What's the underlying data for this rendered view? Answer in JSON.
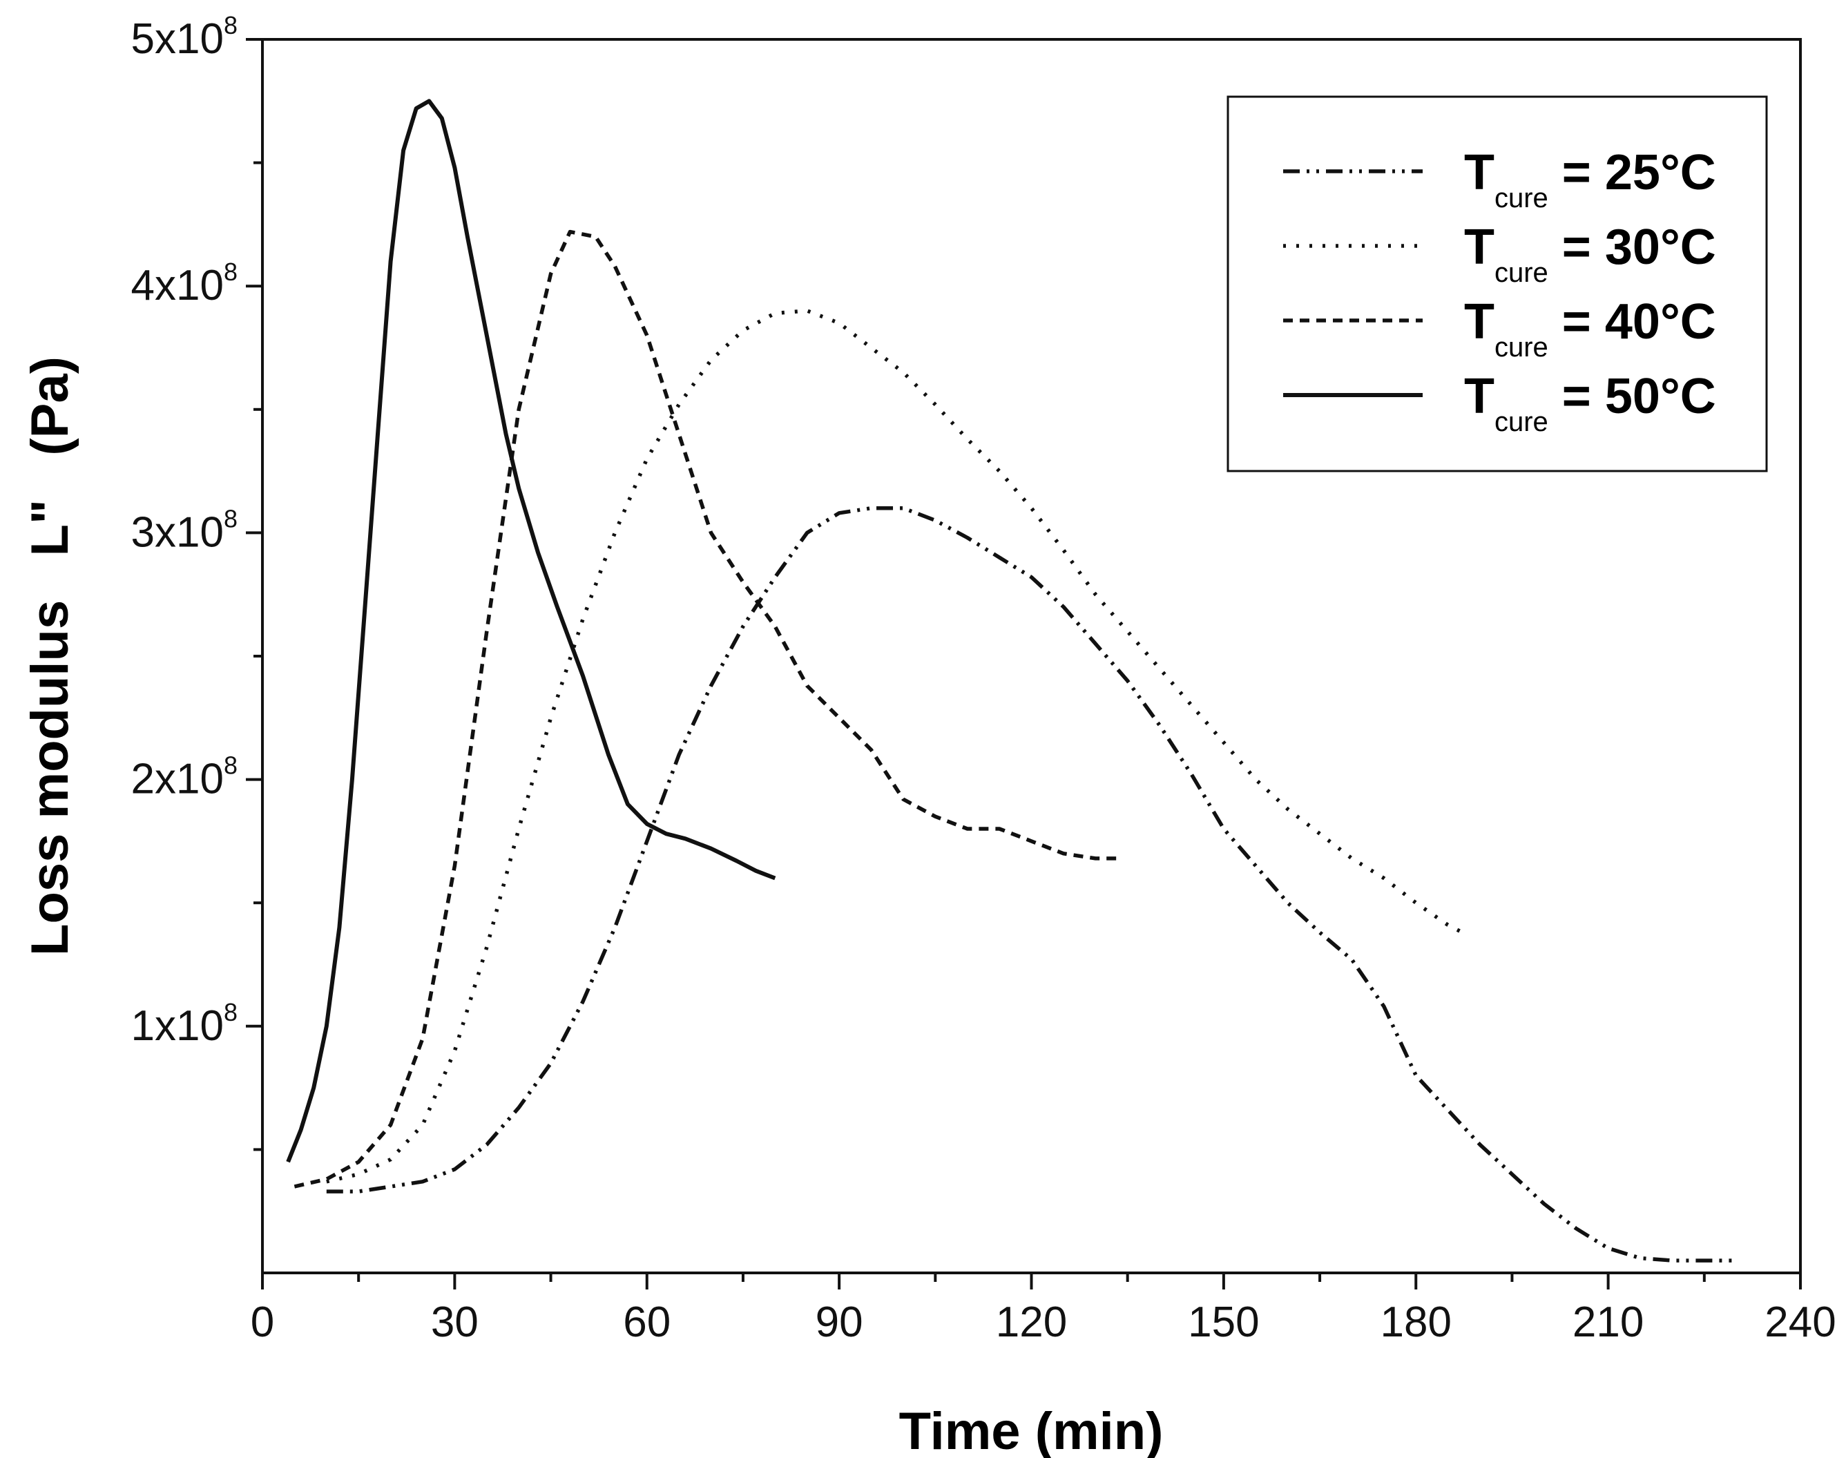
{
  "chart_data": {
    "type": "line",
    "title": "",
    "xlabel": "Time (min)",
    "ylabel": "Loss modulus   L\"   (Pa)",
    "xlim": [
      0,
      240
    ],
    "ylim": [
      0,
      500000000
    ],
    "grid": false,
    "legend_position": "top-right",
    "x_ticks": [
      {
        "value": 0,
        "label": "0"
      },
      {
        "value": 30,
        "label": "30"
      },
      {
        "value": 60,
        "label": "60"
      },
      {
        "value": 90,
        "label": "90"
      },
      {
        "value": 120,
        "label": "120"
      },
      {
        "value": 150,
        "label": "150"
      },
      {
        "value": 180,
        "label": "180"
      },
      {
        "value": 210,
        "label": "210"
      },
      {
        "value": 240,
        "label": "240"
      }
    ],
    "y_ticks": [
      {
        "value": 100000000,
        "mantissa": "1x10",
        "exponent": "8"
      },
      {
        "value": 200000000,
        "mantissa": "2x10",
        "exponent": "8"
      },
      {
        "value": 300000000,
        "mantissa": "3x10",
        "exponent": "8"
      },
      {
        "value": 400000000,
        "mantissa": "4x10",
        "exponent": "8"
      },
      {
        "value": 500000000,
        "mantissa": "5x10",
        "exponent": "8"
      }
    ],
    "series": [
      {
        "name": "T_cure = 25°C",
        "legend": {
          "symbol": "T",
          "subscript": "cure",
          "rest": " = 25°C"
        },
        "dash": "dashdotdot",
        "color": "#111111",
        "x": [
          10,
          15,
          20,
          25,
          30,
          35,
          40,
          45,
          50,
          55,
          60,
          65,
          70,
          75,
          80,
          85,
          90,
          95,
          100,
          105,
          110,
          115,
          120,
          125,
          130,
          135,
          140,
          145,
          150,
          155,
          160,
          165,
          170,
          175,
          180,
          185,
          190,
          195,
          200,
          205,
          210,
          215,
          220,
          225,
          230
        ],
        "y": [
          33000000,
          33000000,
          35000000,
          37000000,
          42000000,
          52000000,
          67000000,
          85000000,
          110000000,
          140000000,
          175000000,
          210000000,
          238000000,
          262000000,
          282000000,
          300000000,
          308000000,
          310000000,
          310000000,
          305000000,
          298000000,
          290000000,
          282000000,
          270000000,
          255000000,
          240000000,
          222000000,
          202000000,
          180000000,
          165000000,
          150000000,
          138000000,
          127000000,
          108000000,
          80000000,
          66000000,
          52000000,
          40000000,
          28000000,
          18000000,
          10000000,
          6000000,
          5000000,
          5000000,
          5000000
        ]
      },
      {
        "name": "T_cure = 30°C",
        "legend": {
          "symbol": "T",
          "subscript": "cure",
          "rest": " = 30°C"
        },
        "dash": "dotted",
        "color": "#111111",
        "x": [
          10,
          15,
          20,
          25,
          30,
          35,
          40,
          45,
          50,
          55,
          60,
          65,
          70,
          75,
          80,
          85,
          90,
          95,
          100,
          105,
          110,
          115,
          120,
          125,
          130,
          135,
          140,
          145,
          150,
          155,
          160,
          165,
          170,
          175,
          180,
          185,
          188
        ],
        "y": [
          37000000,
          40000000,
          46000000,
          60000000,
          90000000,
          132000000,
          180000000,
          225000000,
          265000000,
          300000000,
          330000000,
          352000000,
          370000000,
          382000000,
          389000000,
          390000000,
          385000000,
          375000000,
          365000000,
          352000000,
          338000000,
          325000000,
          310000000,
          293000000,
          275000000,
          260000000,
          245000000,
          230000000,
          215000000,
          200000000,
          188000000,
          178000000,
          168000000,
          160000000,
          150000000,
          141000000,
          137000000
        ]
      },
      {
        "name": "T_cure = 40°C",
        "legend": {
          "symbol": "T",
          "subscript": "cure",
          "rest": " = 40°C"
        },
        "dash": "dashed",
        "color": "#111111",
        "x": [
          5,
          10,
          15,
          20,
          25,
          30,
          35,
          40,
          45,
          48,
          52,
          55,
          60,
          65,
          70,
          75,
          80,
          85,
          90,
          95,
          100,
          105,
          110,
          115,
          120,
          125,
          130,
          134
        ],
        "y": [
          35000000,
          38000000,
          45000000,
          60000000,
          95000000,
          165000000,
          260000000,
          350000000,
          405000000,
          422000000,
          420000000,
          408000000,
          380000000,
          340000000,
          300000000,
          280000000,
          262000000,
          238000000,
          225000000,
          212000000,
          192000000,
          185000000,
          180000000,
          180000000,
          175000000,
          170000000,
          168000000,
          168000000
        ]
      },
      {
        "name": "T_cure = 50°C",
        "legend": {
          "symbol": "T",
          "subscript": "cure",
          "rest": " = 50°C"
        },
        "dash": "solid",
        "color": "#111111",
        "x": [
          4,
          6,
          8,
          10,
          12,
          14,
          16,
          18,
          20,
          22,
          24,
          26,
          28,
          30,
          32,
          35,
          38,
          40,
          43,
          46,
          50,
          54,
          57,
          60,
          63,
          66,
          70,
          74,
          77,
          80
        ],
        "y": [
          45000000,
          58000000,
          75000000,
          100000000,
          140000000,
          200000000,
          270000000,
          340000000,
          410000000,
          455000000,
          472000000,
          475000000,
          468000000,
          448000000,
          420000000,
          380000000,
          340000000,
          318000000,
          292000000,
          270000000,
          242000000,
          210000000,
          190000000,
          182000000,
          178000000,
          176000000,
          172000000,
          167000000,
          163000000,
          160000000
        ]
      }
    ]
  }
}
